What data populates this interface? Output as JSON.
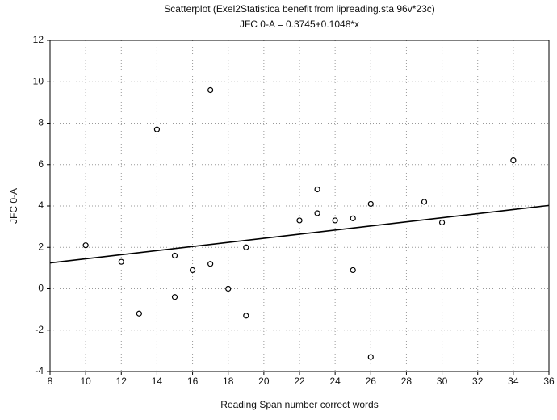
{
  "chart_data": {
    "type": "scatter",
    "title": "Scatterplot (Exel2Statistica benefit from lipreading.sta 96v*23c)",
    "subtitle": "JFC 0-A = 0.3745+0.1048*x",
    "x_label": "Reading Span number correct words",
    "y_label": "JFC 0-A",
    "x": [
      10,
      12,
      13,
      14,
      15,
      15,
      16,
      17,
      17,
      18,
      19,
      19,
      22,
      23,
      23,
      24,
      25,
      25,
      26,
      26,
      29,
      30,
      34
    ],
    "values": [
      2.1,
      1.3,
      -1.2,
      7.7,
      1.6,
      -0.4,
      0.9,
      9.6,
      1.2,
      0,
      2.0,
      -1.3,
      3.3,
      4.8,
      3.65,
      3.3,
      3.4,
      0.9,
      4.1,
      -3.3,
      4.2,
      3.2,
      6.2
    ],
    "xlim": [
      8,
      36
    ],
    "xticks": [
      8,
      10,
      12,
      14,
      16,
      18,
      20,
      22,
      24,
      26,
      28,
      30,
      32,
      34,
      36
    ],
    "ylim": [
      -4,
      12
    ],
    "yticks": [
      -4,
      -2,
      0,
      2,
      4,
      6,
      8,
      10,
      12
    ],
    "grid": true,
    "fit_line": true
  }
}
